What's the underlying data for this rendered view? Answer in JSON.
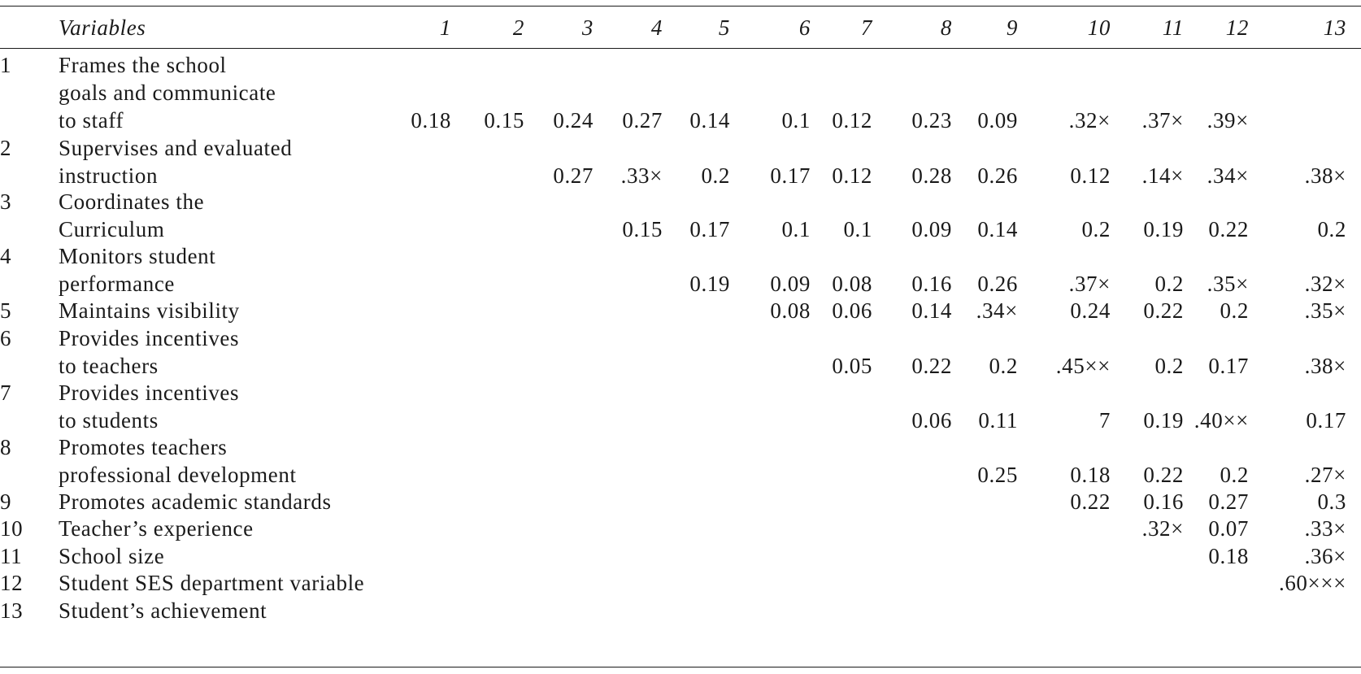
{
  "header": {
    "variables": "Variables",
    "cols": [
      "1",
      "2",
      "3",
      "4",
      "5",
      "6",
      "7",
      "8",
      "9",
      "10",
      "11",
      "12",
      "13"
    ]
  },
  "rows": [
    {
      "no": "1",
      "label": [
        "Frames the school",
        "goals and communicate",
        "to staff"
      ],
      "values": [
        "0.18",
        "0.15",
        "0.24",
        "0.27",
        "0.14",
        "0.1",
        "0.12",
        "0.23",
        "0.09",
        ".32×",
        ".37×",
        ".39×",
        ""
      ]
    },
    {
      "no": "2",
      "label": [
        "Supervises and evaluated",
        "instruction"
      ],
      "values": [
        "",
        "",
        "0.27",
        ".33×",
        "0.2",
        "0.17",
        "0.12",
        "0.28",
        "0.26",
        "0.12",
        ".14×",
        ".34×",
        ".38×"
      ]
    },
    {
      "no": "3",
      "label": [
        "Coordinates the",
        "Curriculum"
      ],
      "values": [
        "",
        "",
        "",
        "0.15",
        "0.17",
        "0.1",
        "0.1",
        "0.09",
        "0.14",
        "0.2",
        "0.19",
        "0.22",
        "0.2"
      ]
    },
    {
      "no": "4",
      "label": [
        "Monitors student",
        "performance"
      ],
      "values": [
        "",
        "",
        "",
        "",
        "0.19",
        "0.09",
        "0.08",
        "0.16",
        "0.26",
        ".37×",
        "0.2",
        ".35×",
        ".32×"
      ]
    },
    {
      "no": "5",
      "label": [
        "Maintains visibility"
      ],
      "values": [
        "",
        "",
        "",
        "",
        "",
        "0.08",
        "0.06",
        "0.14",
        ".34×",
        "0.24",
        "0.22",
        "0.2",
        ".35×"
      ]
    },
    {
      "no": "6",
      "label": [
        "Provides incentives",
        "to teachers"
      ],
      "values": [
        "",
        "",
        "",
        "",
        "",
        "",
        "0.05",
        "0.22",
        "0.2",
        ".45××",
        "0.2",
        "0.17",
        ".38×"
      ]
    },
    {
      "no": "7",
      "label": [
        "Provides incentives",
        "to students"
      ],
      "values": [
        "",
        "",
        "",
        "",
        "",
        "",
        "",
        "0.06",
        "0.11",
        "7",
        "0.19",
        ".40××",
        "0.17"
      ]
    },
    {
      "no": "8",
      "label": [
        "Promotes teachers",
        "professional development"
      ],
      "values": [
        "",
        "",
        "",
        "",
        "",
        "",
        "",
        "",
        "0.25",
        "0.18",
        "0.22",
        "0.2",
        ".27×"
      ]
    },
    {
      "no": "9",
      "label": [
        "Promotes academic standards"
      ],
      "values": [
        "",
        "",
        "",
        "",
        "",
        "",
        "",
        "",
        "",
        "0.22",
        "0.16",
        "0.27",
        "0.3"
      ]
    },
    {
      "no": "10",
      "label": [
        "Teacher’s experience"
      ],
      "values": [
        "",
        "",
        "",
        "",
        "",
        "",
        "",
        "",
        "",
        "",
        ".32×",
        "0.07",
        ".33×"
      ]
    },
    {
      "no": "11",
      "label": [
        "School size"
      ],
      "values": [
        "",
        "",
        "",
        "",
        "",
        "",
        "",
        "",
        "",
        "",
        "",
        "0.18",
        ".36×"
      ]
    },
    {
      "no": "12",
      "label": [
        "Student SES department variable"
      ],
      "values": [
        "",
        "",
        "",
        "",
        "",
        "",
        "",
        "",
        "",
        "",
        "",
        "",
        ".60×××"
      ]
    },
    {
      "no": "13",
      "label": [
        "Student’s achievement"
      ],
      "values": [
        "",
        "",
        "",
        "",
        "",
        "",
        "",
        "",
        "",
        "",
        "",
        "",
        ""
      ]
    }
  ]
}
